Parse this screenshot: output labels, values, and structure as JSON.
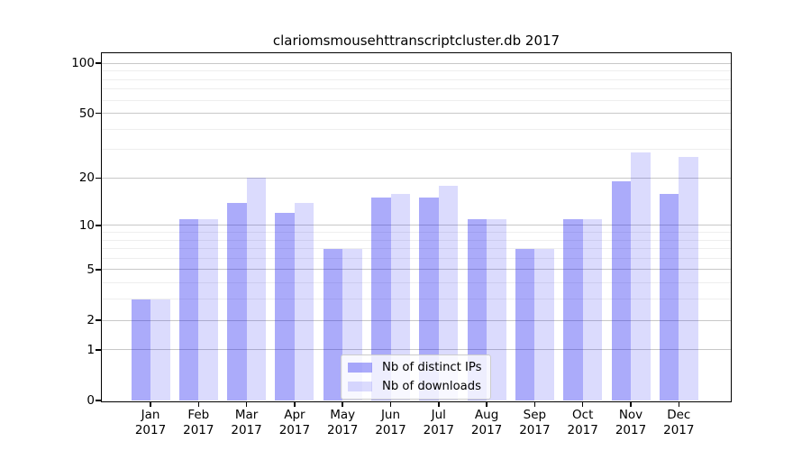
{
  "chart_data": {
    "type": "bar",
    "title": "clariomsmousehttranscriptcluster.db 2017",
    "categories": [
      "Jan 2017",
      "Feb 2017",
      "Mar 2017",
      "Apr 2017",
      "May 2017",
      "Jun 2017",
      "Jul 2017",
      "Aug 2017",
      "Sep 2017",
      "Oct 2017",
      "Nov 2017",
      "Dec 2017"
    ],
    "months": [
      "Jan",
      "Feb",
      "Mar",
      "Apr",
      "May",
      "Jun",
      "Jul",
      "Aug",
      "Sep",
      "Oct",
      "Nov",
      "Dec"
    ],
    "year_label": "2017",
    "series": [
      {
        "name": "Nb of distinct IPs",
        "color": "rgba(13,13,242,0.35)",
        "values": [
          3,
          11,
          14,
          12,
          7,
          15,
          15,
          11,
          7,
          11,
          19,
          16
        ]
      },
      {
        "name": "Nb of downloads",
        "color": "rgba(13,13,242,0.15)",
        "values": [
          3,
          11,
          20,
          14,
          7,
          16,
          18,
          11,
          7,
          11,
          29,
          27
        ]
      }
    ],
    "yscale": "log1p",
    "ylim": [
      0,
      115
    ],
    "y_major_ticks": [
      0,
      1,
      2,
      5,
      10,
      20,
      50,
      100
    ],
    "y_tick_labels": [
      "0",
      "1",
      "2",
      "5",
      "10",
      "20",
      "50",
      "100"
    ],
    "y_minor_gridlines": [
      3,
      4,
      6,
      7,
      8,
      9,
      30,
      40,
      60,
      70,
      80,
      90
    ],
    "grid": true,
    "legend_position": "lower-center",
    "xlabel": "",
    "ylabel": ""
  },
  "colors": {
    "background": "#ffffff",
    "bar_ips": "rgba(13,13,242,0.35)",
    "bar_downloads": "rgba(13,13,242,0.15)",
    "grid_major": "#c8c8c8",
    "grid_minor": "#eeeeee",
    "axis": "#000000",
    "legend_border": "#cccccc"
  }
}
